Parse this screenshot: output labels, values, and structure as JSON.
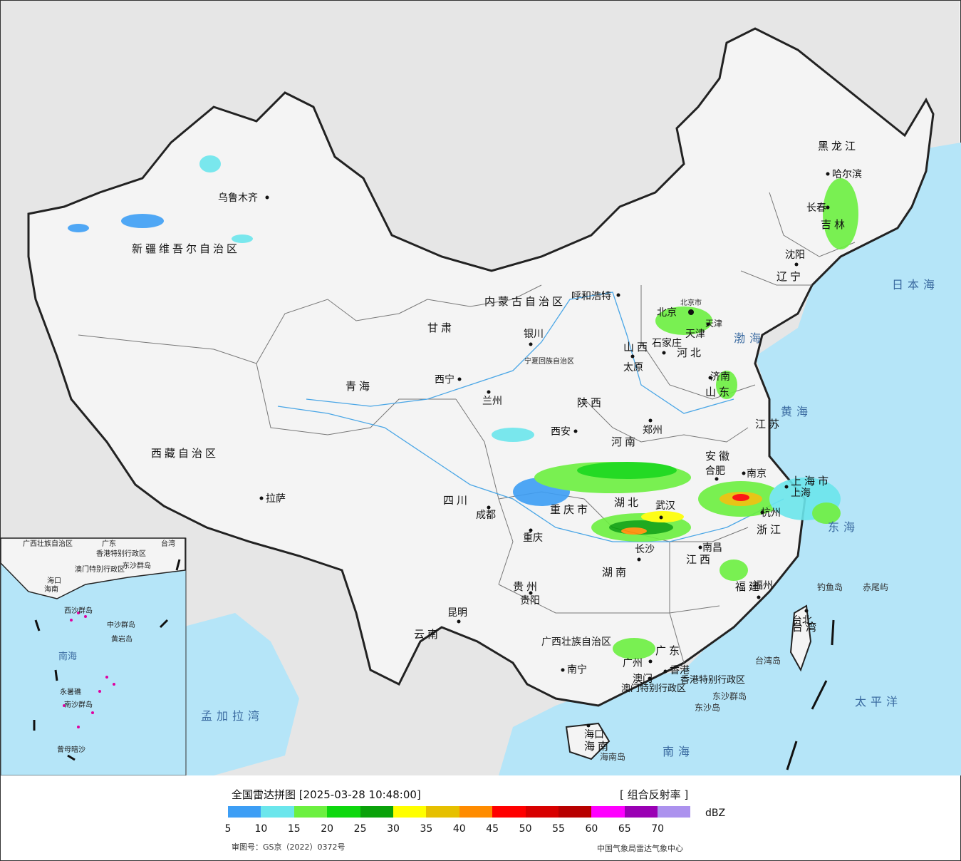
{
  "legend": {
    "title": "全国雷达拼图 [2025-03-28 10:48:00]",
    "product": "[ 组合反射率 ]",
    "unit": "dBZ",
    "ticks": [
      "5",
      "10",
      "15",
      "20",
      "25",
      "30",
      "35",
      "40",
      "45",
      "50",
      "55",
      "60",
      "65",
      "70"
    ],
    "colors": [
      "#3d9ef5",
      "#6be6ec",
      "#6cf040",
      "#0ed80e",
      "#0aa20a",
      "#ffff00",
      "#e6c000",
      "#ff8c00",
      "#ff0000",
      "#d80000",
      "#b80000",
      "#ff00ff",
      "#9a00b4",
      "#ac92ee"
    ],
    "approval": "审图号：GS京（2022）0372号",
    "agency": "中国气象局雷达气象中心"
  },
  "map": {
    "provinces": [
      "新疆维吾尔自治区",
      "西藏自治区",
      "青海",
      "甘肃",
      "内蒙古自治区",
      "黑龙江",
      "吉林",
      "辽宁",
      "河北",
      "山西",
      "陕西",
      "宁夏回族自治区",
      "四川",
      "重庆市",
      "云南",
      "贵州",
      "广西壮族自治区",
      "广东",
      "湖南",
      "湖北",
      "河南",
      "山东",
      "江苏",
      "安徽",
      "浙江",
      "江西",
      "福建",
      "台湾",
      "海南",
      "北京市",
      "天津",
      "上海市",
      "香港特别行政区",
      "澳门特别行政区"
    ],
    "cities": [
      "乌鲁木齐",
      "拉萨",
      "西宁",
      "兰州",
      "银川",
      "呼和浩特",
      "哈尔滨",
      "长春",
      "沈阳",
      "北京",
      "天津",
      "石家庄",
      "太原",
      "济南",
      "郑州",
      "西安",
      "成都",
      "重庆",
      "贵阳",
      "昆明",
      "南宁",
      "广州",
      "香港",
      "澳门",
      "海口",
      "长沙",
      "武汉",
      "合肥",
      "南京",
      "上海",
      "杭州",
      "南昌",
      "福州",
      "台北"
    ],
    "seas": [
      "日本海",
      "渤海",
      "黄海",
      "东海",
      "太平洋",
      "南海",
      "孟加拉湾"
    ],
    "islands": [
      "钓鱼岛",
      "赤尾屿",
      "台湾岛",
      "东沙群岛",
      "东沙岛",
      "海南岛"
    ],
    "inset_labels": [
      "广西壮族自治区",
      "广东",
      "海南",
      "南海",
      "中沙群岛",
      "黄岩岛",
      "西沙群岛",
      "南沙群岛",
      "香港特别行政区",
      "澳门特别行政区",
      "东沙群岛",
      "台湾",
      "海口",
      "永暑礁",
      "曾母暗沙"
    ]
  }
}
